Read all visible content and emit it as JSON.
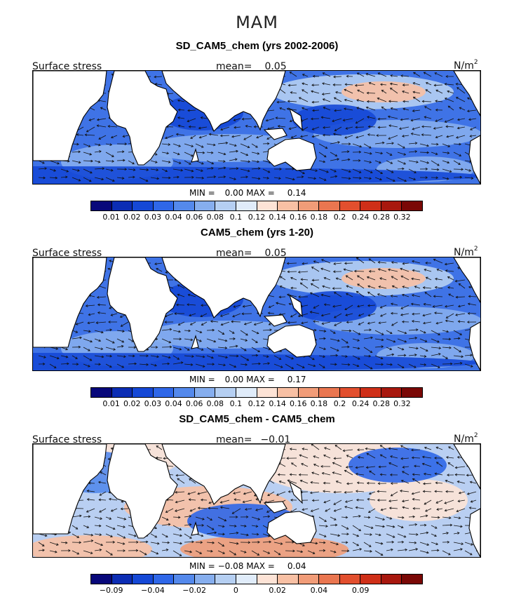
{
  "season": "MAM",
  "units_base": "N/m",
  "units_exp": "2",
  "panels": [
    {
      "title": "SD_CAM5_chem (yrs 2002-2006)",
      "variable": "Surface stress",
      "mean_label": "mean=",
      "mean_value": "0.05",
      "min_label": "MIN =",
      "min_value": "0.00",
      "max_label": "MAX =",
      "max_value": "0.14",
      "palette": "mean"
    },
    {
      "title": "CAM5_chem (yrs 1-20)",
      "variable": "Surface stress",
      "mean_label": "mean=",
      "mean_value": "0.05",
      "min_label": "MIN =",
      "min_value": "0.00",
      "max_label": "MAX =",
      "max_value": "0.17",
      "palette": "mean"
    },
    {
      "title": "SD_CAM5_chem - CAM5_chem",
      "variable": "Surface stress",
      "mean_label": "mean=",
      "mean_value": "−0.01",
      "min_label": "MIN =",
      "min_value": "−0.08",
      "max_label": "MAX =",
      "max_value": "0.04",
      "palette": "diff"
    }
  ],
  "colorbars": {
    "mean": {
      "colors": [
        "#08087a",
        "#0c2db4",
        "#1548d6",
        "#2f67e8",
        "#5489ec",
        "#86aeee",
        "#b5cff2",
        "#e0ecfa",
        "#fde3d6",
        "#f8c0a4",
        "#f19c78",
        "#ea7650",
        "#e24f2e",
        "#cf2f18",
        "#a8180e",
        "#7a0806"
      ],
      "ticks": [
        "0.01",
        "0.02",
        "0.03",
        "0.04",
        "0.06",
        "0.08",
        "0.1",
        "0.12",
        "0.14",
        "0.16",
        "0.18",
        "0.2",
        "0.24",
        "0.28",
        "0.32"
      ]
    },
    "diff": {
      "colors": [
        "#08087a",
        "#0c2db4",
        "#1548d6",
        "#2f67e8",
        "#5489ec",
        "#86aeee",
        "#b5cff2",
        "#e0ecfa",
        "#fde3d6",
        "#f8c0a4",
        "#f19c78",
        "#ea7650",
        "#e24f2e",
        "#cf2f18",
        "#a8180e",
        "#7a0806"
      ],
      "ticks": [
        "−0.09",
        "",
        "−0.04",
        "",
        "−0.02",
        "",
        "0",
        "",
        "0.02",
        "",
        "0.04",
        "",
        "0.09",
        "",
        ""
      ]
    }
  }
}
